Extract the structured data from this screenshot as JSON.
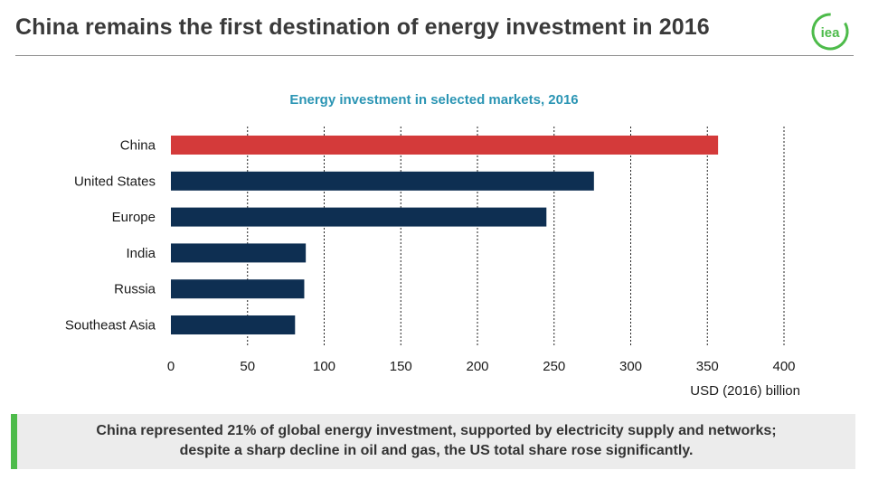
{
  "header": {
    "title": "China remains the first destination of energy investment in 2016",
    "logo_text": "iea",
    "logo_color": "#4dbb4a"
  },
  "chart_data": {
    "type": "bar",
    "orientation": "horizontal",
    "title": "Energy investment in selected markets, 2016",
    "categories": [
      "China",
      "United States",
      "Europe",
      "India",
      "Russia",
      "Southeast Asia"
    ],
    "values": [
      357,
      276,
      245,
      88,
      87,
      81
    ],
    "colors": [
      "#d43a3a",
      "#0e2f52",
      "#0e2f52",
      "#0e2f52",
      "#0e2f52",
      "#0e2f52"
    ],
    "xlabel": "USD (2016) billion",
    "ylabel": "",
    "xlim": [
      0,
      400
    ],
    "xticks": [
      0,
      50,
      100,
      150,
      200,
      250,
      300,
      350,
      400
    ],
    "grid": "vertical dotted"
  },
  "caption": {
    "line1": "China represented 21% of global energy investment, supported by electricity supply and networks;",
    "line2": "despite a sharp decline in oil and gas, the US total share rose significantly.",
    "accent_color": "#4dbb4a"
  }
}
